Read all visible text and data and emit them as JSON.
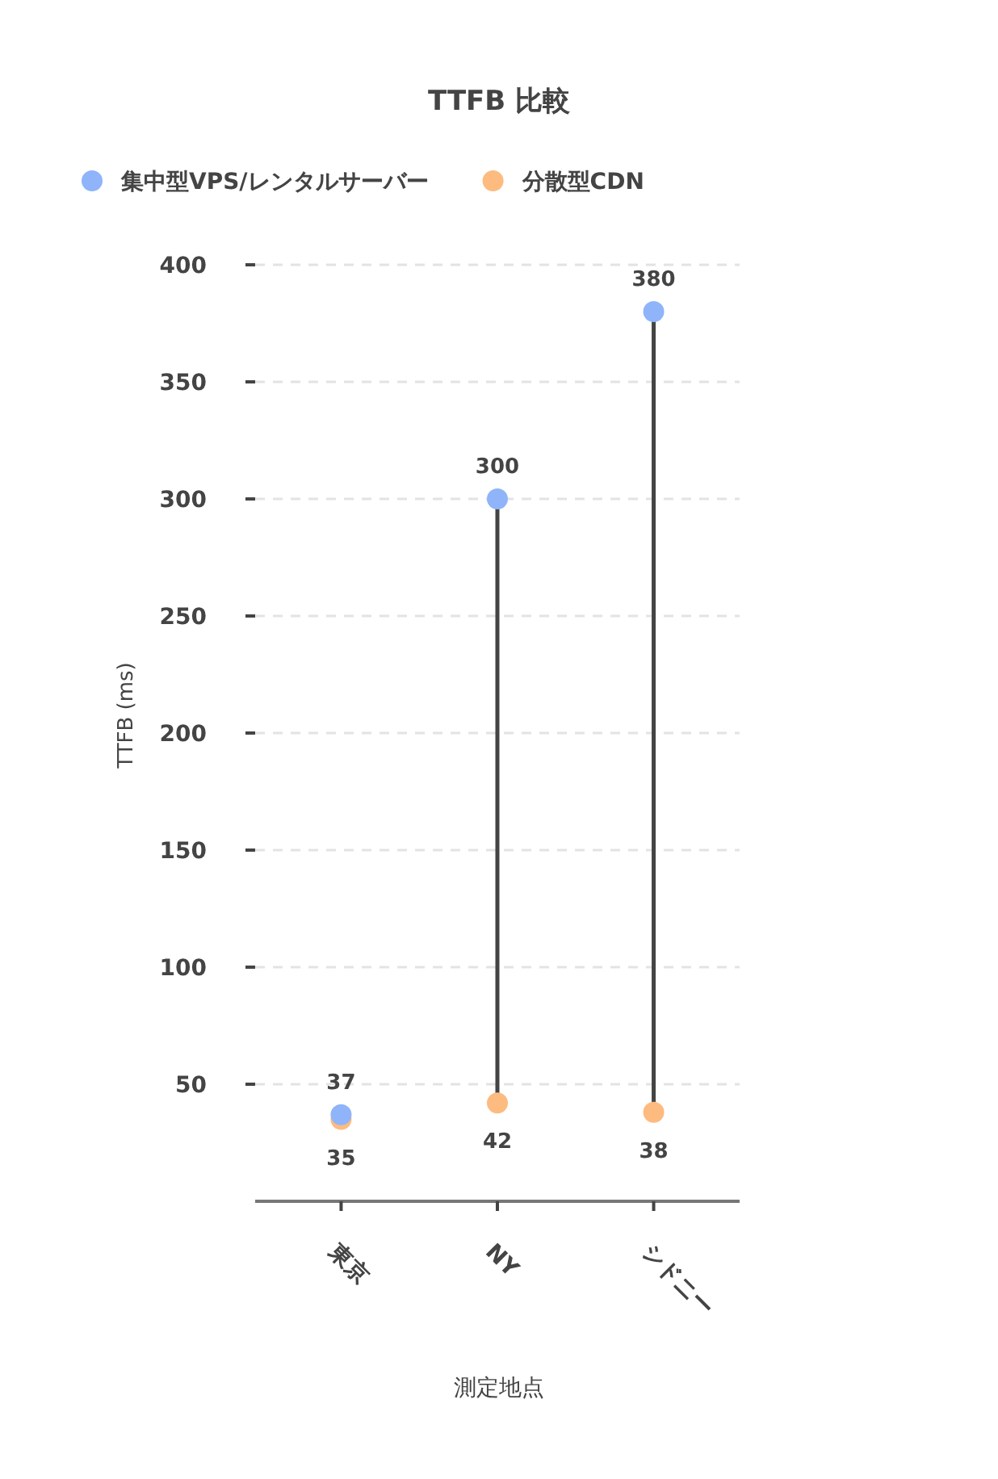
{
  "chart_data": {
    "type": "scatter",
    "title": "TTFB 比較",
    "xlabel": "測定地点",
    "ylabel": "TTFB (ms)",
    "categories": [
      "東京",
      "NY",
      "シドニー"
    ],
    "series": [
      {
        "name": "集中型VPS/レンタルサーバー",
        "color": "#8fb4fa",
        "values": [
          37,
          300,
          380
        ]
      },
      {
        "name": "分散型CDN",
        "color": "#fdbb80",
        "values": [
          35,
          42,
          38
        ]
      }
    ],
    "ylim": [
      0,
      400
    ],
    "yticks": [
      50,
      100,
      150,
      200,
      250,
      300,
      350,
      400
    ],
    "grid": "y",
    "legend": "top left",
    "marker": "circle",
    "data_labels": true
  }
}
